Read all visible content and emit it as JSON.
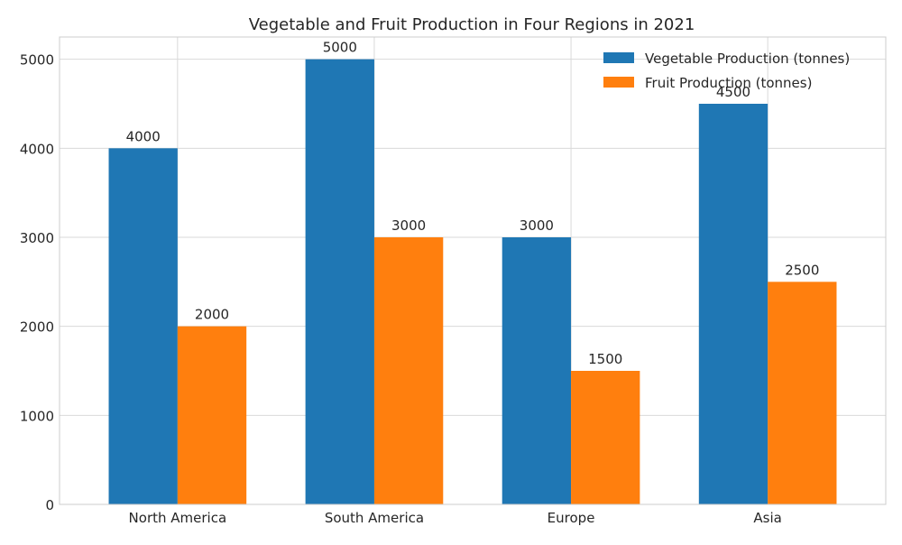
{
  "chart_data": {
    "type": "bar",
    "title": "Vegetable and Fruit Production in Four Regions in 2021",
    "xlabel": "",
    "ylabel": "",
    "categories": [
      "North America",
      "South America",
      "Europe",
      "Asia"
    ],
    "series": [
      {
        "name": "Vegetable Production (tonnes)",
        "values": [
          4000,
          5000,
          3000,
          4500
        ],
        "color": "#1f77b4"
      },
      {
        "name": "Fruit Production (tonnes)",
        "values": [
          2000,
          3000,
          1500,
          2500
        ],
        "color": "#ff7f0e"
      }
    ],
    "ylim": [
      0,
      5250
    ],
    "yticks": [
      0,
      1000,
      2000,
      3000,
      4000,
      5000
    ],
    "grid": true,
    "legend_position": "top-right",
    "data_labels": true
  }
}
